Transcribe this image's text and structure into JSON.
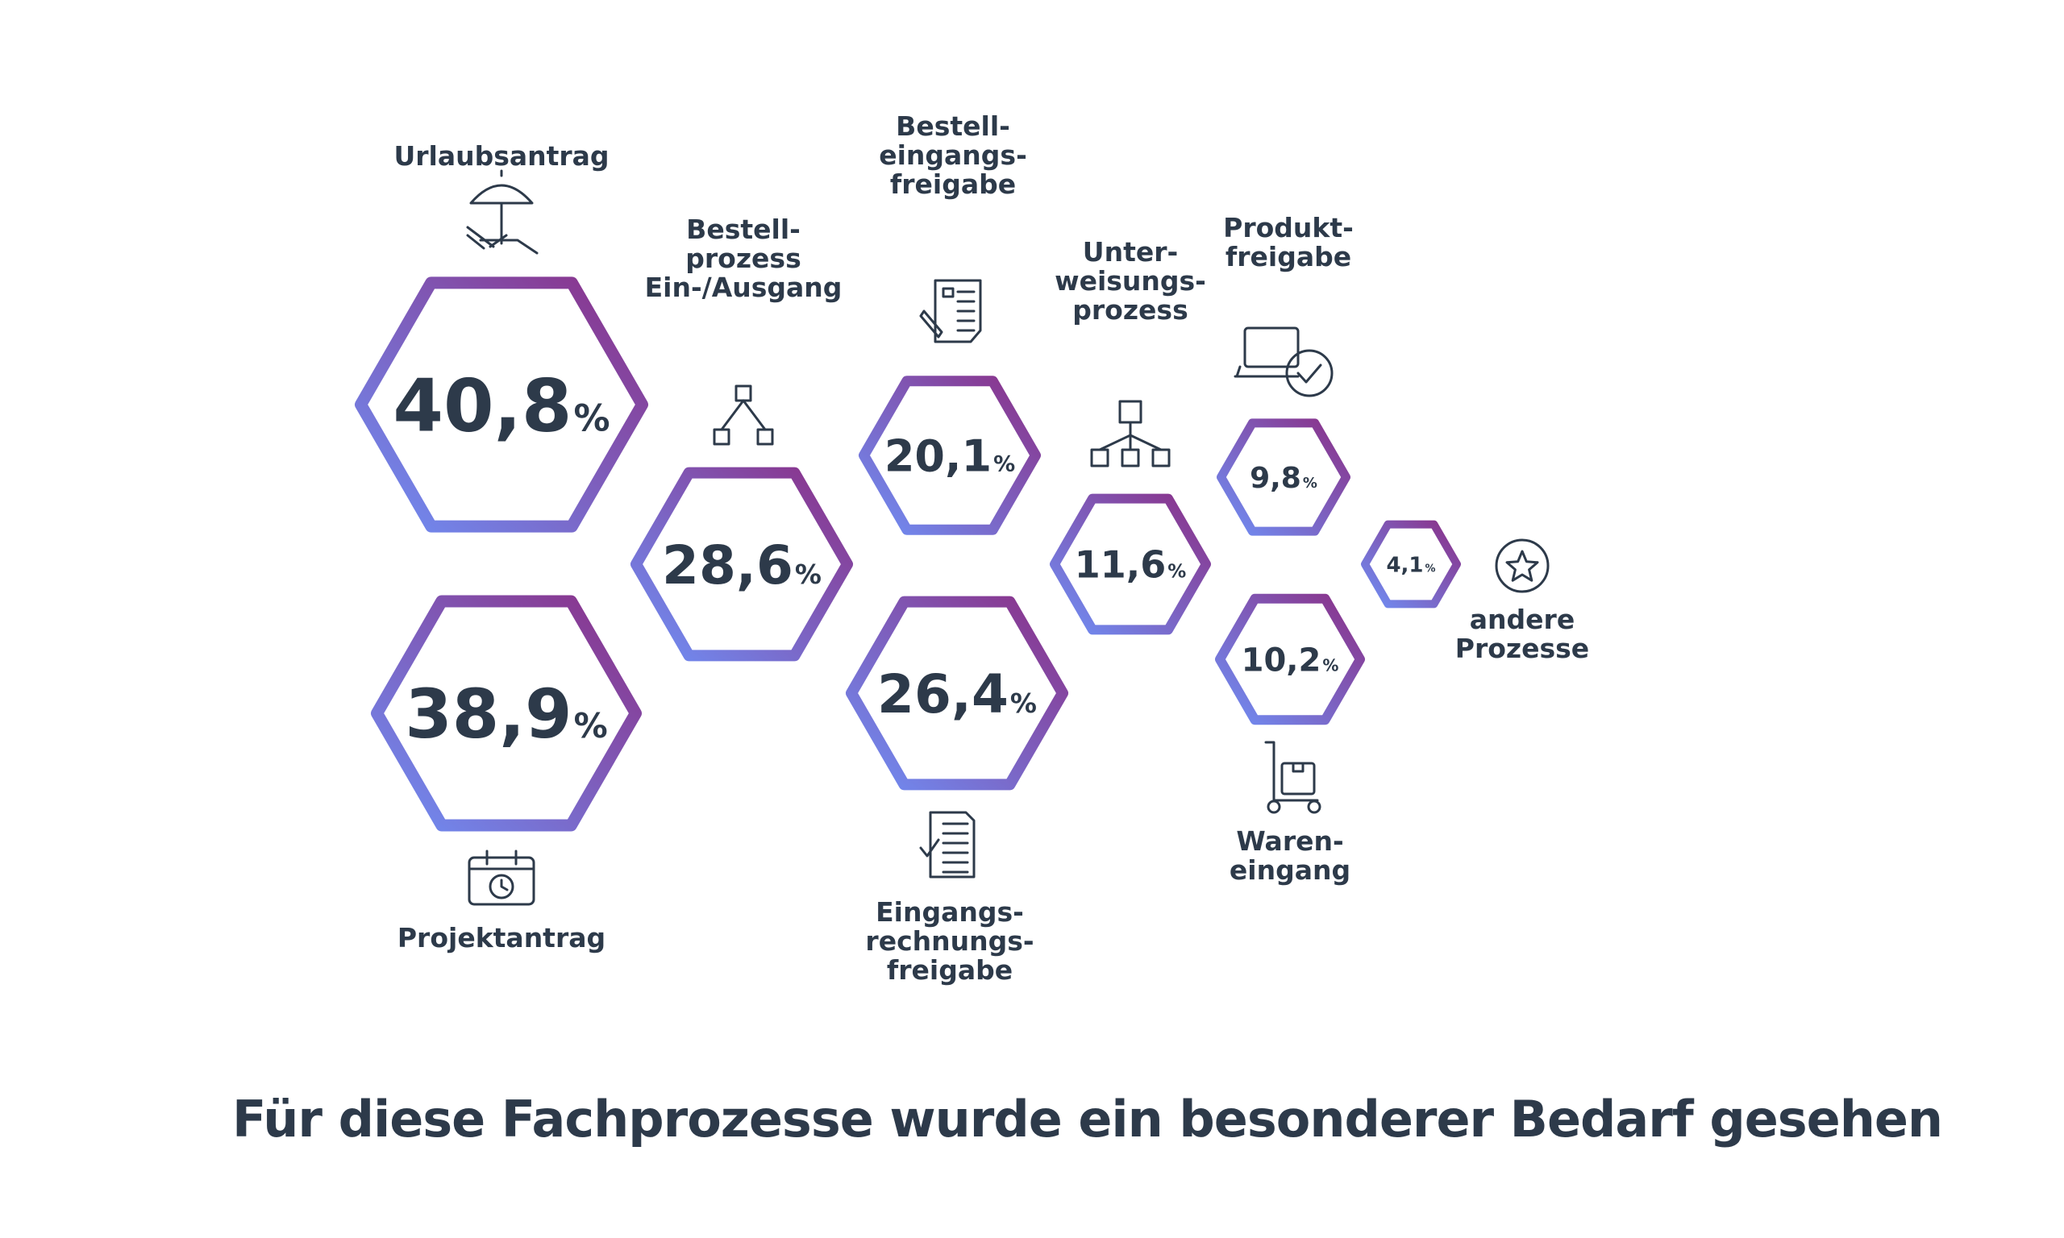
{
  "caption": "Für diese Fachprozesse wurde ein besonderer Bedarf gesehen",
  "colors": {
    "gradient_start": "#6f8ff5",
    "gradient_end": "#8b2f86",
    "text": "#2d3a4a"
  },
  "chart_data": {
    "type": "bubble",
    "title": "Für diese Fachprozesse wurde ein besonderer Bedarf gesehen",
    "unit": "%",
    "items": [
      {
        "label": "Urlaubsantrag",
        "value": 40.8,
        "display": "40,8",
        "icon": "beach-chair-umbrella-icon"
      },
      {
        "label": "Projektantrag",
        "value": 38.9,
        "display": "38,9",
        "icon": "calendar-clock-icon"
      },
      {
        "label": "Bestell-prozess Ein-/Ausgang",
        "value": 28.6,
        "display": "28,6",
        "icon": "hierarchy-small-icon"
      },
      {
        "label": "Eingangs-rechnungs-freigabe",
        "value": 26.4,
        "display": "26,4",
        "icon": "checklist-document-icon"
      },
      {
        "label": "Bestell-eingangs-freigabe",
        "value": 20.1,
        "display": "20,1",
        "icon": "signed-document-icon"
      },
      {
        "label": "Unter-weisungs-prozess",
        "value": 11.6,
        "display": "11,6",
        "icon": "org-chart-icon"
      },
      {
        "label": "Waren-eingang",
        "value": 10.2,
        "display": "10,2",
        "icon": "hand-truck-box-icon"
      },
      {
        "label": "Produkt-freigabe",
        "value": 9.8,
        "display": "9,8",
        "icon": "laptop-check-icon"
      },
      {
        "label": "andere Prozesse",
        "value": 4.1,
        "display": "4,1",
        "icon": "star-circle-icon"
      }
    ]
  }
}
